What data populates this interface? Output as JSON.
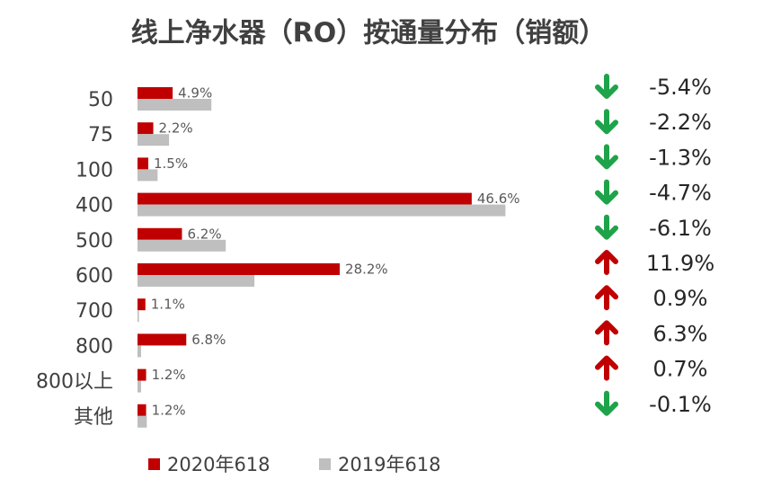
{
  "chart_data": {
    "type": "bar",
    "orientation": "horizontal",
    "title": "线上净水器（RO）按通量分布（销额）",
    "categories": [
      "50",
      "75",
      "100",
      "400",
      "500",
      "600",
      "700",
      "800",
      "800以上",
      "其他"
    ],
    "series": [
      {
        "name": "2020年618",
        "color": "#c00000",
        "values": [
          4.9,
          2.2,
          1.5,
          46.6,
          6.2,
          28.2,
          1.1,
          6.8,
          1.2,
          1.2
        ],
        "value_labels": [
          "4.9%",
          "2.2%",
          "1.5%",
          "46.6%",
          "6.2%",
          "28.2%",
          "1.1%",
          "6.8%",
          "1.2%",
          "1.2%"
        ]
      },
      {
        "name": "2019年618",
        "color": "#bfbfbf",
        "values": [
          10.3,
          4.4,
          2.8,
          51.3,
          12.3,
          16.3,
          0.2,
          0.5,
          0.5,
          1.3
        ]
      }
    ],
    "changes": {
      "values": [
        -5.4,
        -2.2,
        -1.3,
        -4.7,
        -6.1,
        11.9,
        0.9,
        6.3,
        0.7,
        -0.1
      ],
      "value_labels": [
        "-5.4%",
        "-2.2%",
        "-1.3%",
        "-4.7%",
        "-6.1%",
        "11.9%",
        "0.9%",
        "6.3%",
        "0.7%",
        "-0.1%"
      ],
      "up_color": "#c00000",
      "down_color": "#1fa34a"
    }
  }
}
